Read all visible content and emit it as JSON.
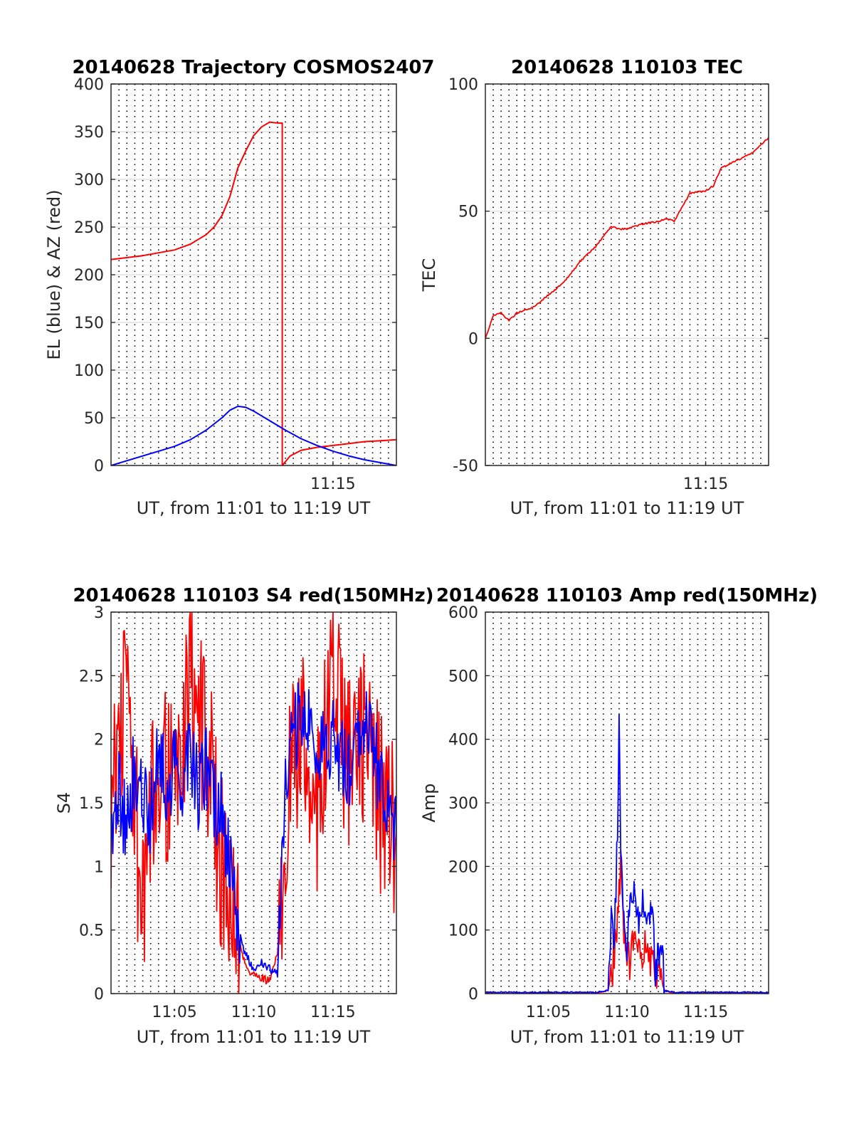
{
  "colors": {
    "el": "#0000ff",
    "az": "#ff0000",
    "grid": "#000000",
    "axis": "#262626"
  },
  "chart_data": [
    {
      "id": "p1",
      "type": "line",
      "title": "20140628 Trajectory COSMOS2407",
      "xlabel": "UT, from 11:01 to 11:19 UT",
      "ylabel": "EL (blue) & AZ (red)",
      "xlim_min": [
        1,
        19
      ],
      "ylim": [
        0,
        400
      ],
      "yticks": [
        0,
        50,
        100,
        150,
        200,
        250,
        300,
        350,
        400
      ],
      "ytick_labels": [
        "0",
        "50",
        "100",
        "150",
        "200",
        "250",
        "300",
        "350",
        "400"
      ],
      "xticks": [
        15
      ],
      "xtick_labels": [
        "11:15"
      ],
      "grid": "dotted vertical every 0.5 min, solid horizontal",
      "series": [
        {
          "color": "#ff0000",
          "x": [
            1,
            3,
            5,
            6,
            7,
            7.5,
            8,
            8.5,
            9,
            9.5,
            10,
            10.5,
            11,
            11.5,
            11.8,
            11.8,
            12.3,
            13,
            14,
            15,
            16,
            17,
            18,
            19
          ],
          "y": [
            216,
            220,
            226,
            232,
            242,
            250,
            262,
            282,
            312,
            330,
            346,
            355,
            360,
            359,
            359,
            0,
            10,
            16,
            19,
            21,
            23,
            25,
            26,
            27
          ]
        },
        {
          "color": "#0000ff",
          "x": [
            1,
            2,
            3,
            4,
            5,
            6,
            7,
            8,
            8.5,
            9,
            9.5,
            10,
            10.5,
            11,
            12,
            13,
            14,
            15,
            16,
            17,
            18,
            19
          ],
          "y": [
            0,
            5,
            10,
            15,
            20,
            27,
            37,
            50,
            58,
            62,
            61,
            57,
            52,
            47,
            37,
            28,
            21,
            15,
            10,
            6,
            3,
            0
          ]
        }
      ]
    },
    {
      "id": "p2",
      "type": "line",
      "title": "20140628 110103 TEC",
      "xlabel": "UT, from 11:01 to 11:19 UT",
      "ylabel": "TEC",
      "xlim_min": [
        1,
        19
      ],
      "ylim": [
        -50,
        100
      ],
      "yticks": [
        -50,
        0,
        50,
        100
      ],
      "ytick_labels": [
        "-50",
        "0",
        "50",
        "100"
      ],
      "xticks": [
        15
      ],
      "xtick_labels": [
        "11:15"
      ],
      "series": [
        {
          "color": "#ff0000",
          "x": [
            1,
            1.5,
            2,
            2.5,
            3,
            4,
            5,
            6,
            7,
            8,
            9,
            9.5,
            10,
            11,
            12,
            12.5,
            13,
            14,
            15,
            15.5,
            16,
            17,
            18,
            19
          ],
          "y": [
            0,
            9,
            10,
            7,
            10,
            12,
            17,
            22,
            30,
            36,
            44,
            43,
            43,
            45,
            46,
            47,
            46,
            57,
            58,
            60,
            67,
            70,
            73,
            79
          ]
        }
      ]
    },
    {
      "id": "p3",
      "type": "line",
      "title": "20140628 110103 S4 red(150MHz)",
      "xlabel": "UT, from 11:01 to 11:19 UT",
      "ylabel": "S4",
      "xlim_min": [
        1,
        19
      ],
      "ylim": [
        0,
        3
      ],
      "yticks": [
        0,
        0.5,
        1,
        1.5,
        2,
        2.5,
        3
      ],
      "ytick_labels": [
        "0",
        "0.5",
        "1",
        "1.5",
        "2",
        "2.5",
        "3"
      ],
      "xticks": [
        5,
        10,
        15
      ],
      "xtick_labels": [
        "11:05",
        "11:10",
        "11:15"
      ],
      "series": [
        {
          "color": "#ff0000",
          "x": [
            1,
            2,
            3,
            4,
            5,
            6,
            7,
            7.5,
            8,
            8.5,
            9,
            9.5,
            10,
            10.5,
            11,
            11.5,
            12,
            13,
            14,
            15,
            16,
            17,
            18,
            19
          ],
          "y": [
            1.5,
            2.5,
            0.5,
            2.0,
            1.5,
            2.5,
            2.0,
            1.5,
            1.0,
            0.8,
            0.5,
            0.2,
            0.15,
            0.12,
            0.1,
            0.3,
            1.5,
            2.0,
            1.5,
            2.5,
            1.8,
            2.0,
            1.5,
            1.3
          ]
        },
        {
          "color": "#0000ff",
          "x": [
            1,
            1.5,
            2,
            2.5,
            3,
            3.5,
            4,
            4.5,
            5,
            5.5,
            6,
            6.5,
            7,
            7.5,
            8,
            8.5,
            9,
            9.5,
            10,
            10.5,
            11,
            11.5,
            12,
            13,
            14,
            15,
            16,
            17,
            18,
            19
          ],
          "y": [
            1.2,
            1.6,
            1.3,
            1.8,
            1.5,
            1.4,
            2.0,
            1.6,
            1.8,
            1.7,
            1.9,
            1.6,
            1.8,
            1.5,
            1.4,
            1.0,
            0.5,
            0.3,
            0.2,
            0.25,
            0.2,
            0.15,
            1.8,
            2.2,
            1.9,
            2.0,
            1.8,
            2.1,
            1.7,
            1.2
          ]
        }
      ]
    },
    {
      "id": "p4",
      "type": "line",
      "title": "20140628 110103 Amp red(150MHz)",
      "xlabel": "UT, from 11:01 to 11:19 UT",
      "ylabel": "Amp",
      "xlim_min": [
        1,
        19
      ],
      "ylim": [
        0,
        600
      ],
      "yticks": [
        0,
        100,
        200,
        300,
        400,
        500,
        600
      ],
      "ytick_labels": [
        "0",
        "100",
        "200",
        "300",
        "400",
        "500",
        "600"
      ],
      "xticks": [
        5,
        10,
        15
      ],
      "xtick_labels": [
        "11:05",
        "11:10",
        "11:15"
      ],
      "series": [
        {
          "color": "#ff0000",
          "x": [
            1,
            8,
            8.8,
            9.2,
            9.4,
            9.6,
            9.8,
            10,
            10.4,
            10.8,
            11.2,
            11.6,
            12,
            12.4,
            13,
            19
          ],
          "y": [
            0,
            0,
            5,
            60,
            120,
            200,
            80,
            40,
            70,
            50,
            80,
            40,
            30,
            5,
            0,
            0
          ]
        },
        {
          "color": "#0000ff",
          "x": [
            1,
            8,
            8.8,
            9,
            9.2,
            9.4,
            9.5,
            9.6,
            9.8,
            10,
            10.2,
            10.5,
            10.8,
            11,
            11.3,
            11.6,
            11.8,
            12,
            12.2,
            12.4,
            13,
            19
          ],
          "y": [
            2,
            2,
            5,
            110,
            90,
            260,
            430,
            250,
            100,
            60,
            150,
            170,
            120,
            165,
            100,
            160,
            40,
            50,
            60,
            5,
            2,
            2
          ]
        }
      ]
    }
  ]
}
